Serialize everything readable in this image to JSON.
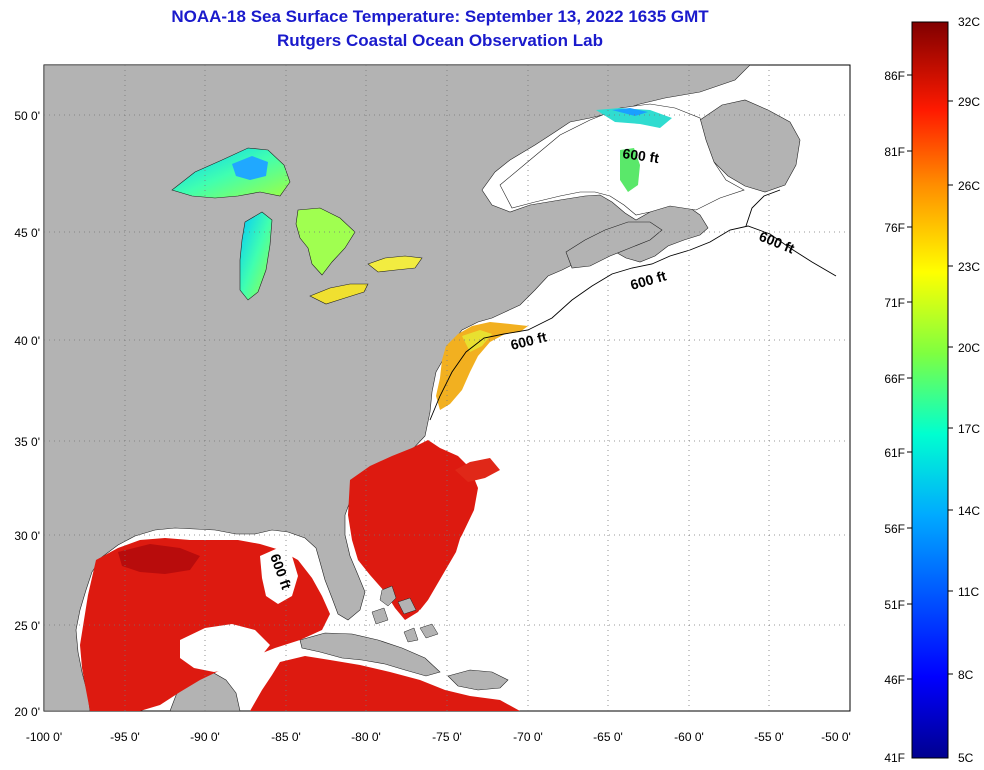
{
  "title": {
    "line1": "NOAA-18 Sea Surface Temperature:  September 13, 2022 1635 GMT",
    "line2": "Rutgers Coastal Ocean Observation Lab"
  },
  "map": {
    "lat_ticks": [
      {
        "label": "50 0'",
        "value": 50
      },
      {
        "label": "45 0'",
        "value": 45
      },
      {
        "label": "40 0'",
        "value": 40
      },
      {
        "label": "35 0'",
        "value": 35
      },
      {
        "label": "30 0'",
        "value": 30
      },
      {
        "label": "25 0'",
        "value": 25
      },
      {
        "label": "20 0'",
        "value": 20
      }
    ],
    "lon_ticks": [
      {
        "label": "-100 0'",
        "value": -100
      },
      {
        "label": "-95 0'",
        "value": -95
      },
      {
        "label": "-90 0'",
        "value": -90
      },
      {
        "label": "-85 0'",
        "value": -85
      },
      {
        "label": "-80 0'",
        "value": -80
      },
      {
        "label": "-75 0'",
        "value": -75
      },
      {
        "label": "-70 0'",
        "value": -70
      },
      {
        "label": "-65 0'",
        "value": -65
      },
      {
        "label": "-60 0'",
        "value": -60
      },
      {
        "label": "-55 0'",
        "value": -55
      },
      {
        "label": "-50 0'",
        "value": -50
      }
    ],
    "contour_label": "600 ft",
    "colors": {
      "land": "#b3b3b3",
      "ocean": "#ffffff",
      "warm": "#dd1a10",
      "warm_dark": "#b80c0c"
    }
  },
  "colorbar": {
    "celsius_labels": [
      "32C",
      "29C",
      "26C",
      "23C",
      "20C",
      "17C",
      "14C",
      "11C",
      "8C",
      "5C"
    ],
    "fahrenheit_labels": [
      "86F",
      "81F",
      "76F",
      "71F",
      "66F",
      "61F",
      "56F",
      "51F",
      "46F",
      "41F"
    ]
  }
}
